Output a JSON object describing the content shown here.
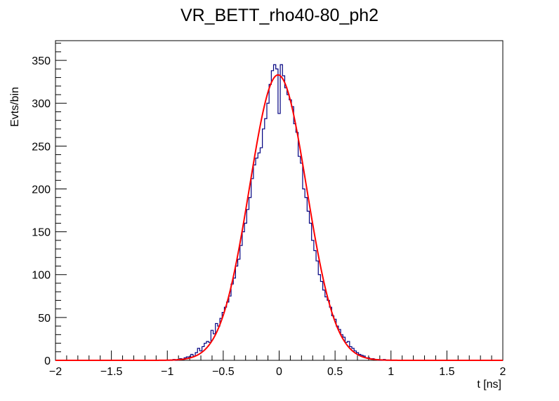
{
  "chart_data": {
    "type": "histogram",
    "title": "VR_BETT_rho40-80_ph2",
    "xlabel": "t [ns]",
    "ylabel": "Evts/bin",
    "xlim": [
      -2,
      2
    ],
    "ylim": [
      0,
      373
    ],
    "x_ticks": [
      "−2",
      "−1.5",
      "−1",
      "−0.5",
      "0",
      "0.5",
      "1",
      "1.5",
      "2"
    ],
    "y_ticks": [
      "0",
      "50",
      "100",
      "150",
      "200",
      "250",
      "300",
      "350"
    ],
    "grid": false,
    "legend": "none",
    "series": [
      {
        "kind": "step",
        "color": "#000080",
        "bin_width": 0.02,
        "x": [
          -0.96,
          -0.94,
          -0.92,
          -0.9,
          -0.88,
          -0.86,
          -0.84,
          -0.82,
          -0.8,
          -0.78,
          -0.76,
          -0.74,
          -0.72,
          -0.7,
          -0.68,
          -0.66,
          -0.64,
          -0.62,
          -0.6,
          -0.58,
          -0.56,
          -0.54,
          -0.52,
          -0.5,
          -0.48,
          -0.46,
          -0.44,
          -0.42,
          -0.4,
          -0.38,
          -0.36,
          -0.34,
          -0.32,
          -0.3,
          -0.28,
          -0.26,
          -0.24,
          -0.22,
          -0.2,
          -0.18,
          -0.16,
          -0.14,
          -0.12,
          -0.1,
          -0.08,
          -0.06,
          -0.04,
          -0.02,
          0.0,
          0.02,
          0.04,
          0.06,
          0.08,
          0.1,
          0.12,
          0.14,
          0.16,
          0.18,
          0.2,
          0.22,
          0.24,
          0.26,
          0.28,
          0.3,
          0.32,
          0.34,
          0.36,
          0.38,
          0.4,
          0.42,
          0.44,
          0.46,
          0.48,
          0.5,
          0.52,
          0.54,
          0.56,
          0.58,
          0.6,
          0.62,
          0.64,
          0.66,
          0.68,
          0.7,
          0.72,
          0.74,
          0.76,
          0.78,
          0.8,
          0.82,
          0.84,
          0.86,
          0.88,
          0.9,
          0.92,
          0.94
        ],
        "values": [
          0,
          1,
          0,
          1,
          2,
          1,
          3,
          4,
          4,
          7,
          5,
          9,
          14,
          11,
          16,
          20,
          22,
          21,
          35,
          31,
          43,
          40,
          49,
          56,
          62,
          68,
          75,
          89,
          96,
          110,
          118,
          134,
          150,
          160,
          176,
          190,
          212,
          228,
          236,
          242,
          248,
          270,
          282,
          300,
          322,
          338,
          345,
          340,
          288,
          345,
          332,
          318,
          310,
          304,
          296,
          276,
          266,
          238,
          230,
          200,
          190,
          174,
          160,
          140,
          128,
          116,
          100,
          92,
          82,
          74,
          70,
          62,
          52,
          48,
          40,
          36,
          30,
          27,
          21,
          22,
          16,
          14,
          11,
          9,
          7,
          6,
          5,
          3,
          3,
          2,
          2,
          1,
          1,
          0,
          0,
          1
        ]
      },
      {
        "kind": "fit",
        "color": "#ff0000",
        "function": "gaus",
        "constant": 333,
        "mean": -0.01,
        "sigma": 0.255
      }
    ]
  }
}
